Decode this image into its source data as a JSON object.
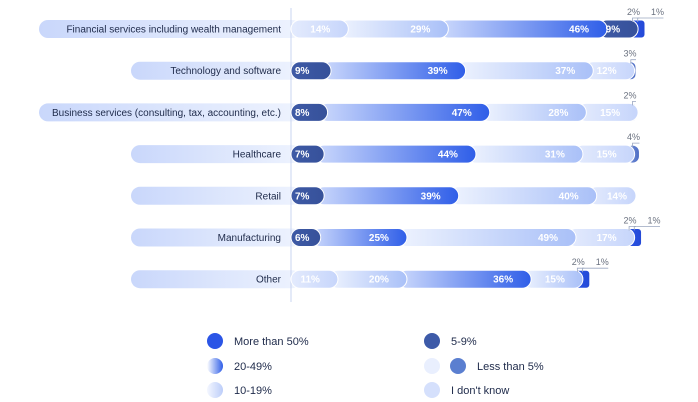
{
  "chart_data": {
    "type": "bar",
    "orientation": "horizontal",
    "stacked": true,
    "categories": [
      "Financial services including wealth management",
      "Technology and software",
      "Business services (consulting, tax, accounting, etc.)",
      "Healthcare",
      "Retail",
      "Manufacturing",
      "Other"
    ],
    "rows": [
      {
        "segments": [
          {
            "series": "I don't know",
            "value": 14,
            "label": "14%"
          },
          {
            "series": "10-19%",
            "value": 29,
            "label": "29%"
          },
          {
            "series": "20-49%",
            "value": 46,
            "label": "46%"
          },
          {
            "series": "5-9%",
            "value": 9,
            "label": "9%"
          },
          {
            "series": "More than 50%",
            "value": 2,
            "label": "2%"
          },
          {
            "series": "Less than 5%",
            "value": 1,
            "label": "1%"
          }
        ]
      },
      {
        "segments": [
          {
            "series": "5-9%",
            "value": 9,
            "label": "9%"
          },
          {
            "series": "20-49%",
            "value": 39,
            "label": "39%"
          },
          {
            "series": "10-19%",
            "value": 37,
            "label": "37%"
          },
          {
            "series": "I don't know",
            "value": 12,
            "label": "12%"
          },
          {
            "series": "Less than 5%",
            "value": 3,
            "label": "3%"
          }
        ]
      },
      {
        "segments": [
          {
            "series": "5-9%",
            "value": 8,
            "label": "8%"
          },
          {
            "series": "20-49%",
            "value": 47,
            "label": "47%"
          },
          {
            "series": "10-19%",
            "value": 28,
            "label": "28%"
          },
          {
            "series": "I don't know",
            "value": 15,
            "label": "15%"
          },
          {
            "series": "Less than 5%",
            "value": 2,
            "label": "2%"
          }
        ]
      },
      {
        "segments": [
          {
            "series": "5-9%",
            "value": 7,
            "label": "7%"
          },
          {
            "series": "20-49%",
            "value": 44,
            "label": "44%"
          },
          {
            "series": "10-19%",
            "value": 31,
            "label": "31%"
          },
          {
            "series": "I don't know",
            "value": 15,
            "label": "15%"
          },
          {
            "series": "Less than 5%",
            "value": 4,
            "label": "4%"
          }
        ]
      },
      {
        "segments": [
          {
            "series": "5-9%",
            "value": 7,
            "label": "7%"
          },
          {
            "series": "20-49%",
            "value": 39,
            "label": "39%"
          },
          {
            "series": "10-19%",
            "value": 40,
            "label": "40%"
          },
          {
            "series": "I don't know",
            "value": 14,
            "label": "14%"
          }
        ]
      },
      {
        "segments": [
          {
            "series": "5-9%",
            "value": 6,
            "label": "6%"
          },
          {
            "series": "20-49%",
            "value": 25,
            "label": "25%"
          },
          {
            "series": "10-19%",
            "value": 49,
            "label": "49%"
          },
          {
            "series": "I don't know",
            "value": 17,
            "label": "17%"
          },
          {
            "series": "More than 50%",
            "value": 2,
            "label": "2%"
          },
          {
            "series": "Less than 5%",
            "value": 1,
            "label": "1%"
          }
        ]
      },
      {
        "segments": [
          {
            "series": "I don't know",
            "value": 11,
            "label": "11%"
          },
          {
            "series": "10-19%",
            "value": 20,
            "label": "20%"
          },
          {
            "series": "20-49%",
            "value": 36,
            "label": "36%"
          },
          {
            "series": "10-19%",
            "value": 15,
            "label": "15%"
          },
          {
            "series": "More than 50%",
            "value": 2,
            "label": "2%"
          },
          {
            "series": "Less than 5%",
            "value": 1,
            "label": "1%"
          }
        ]
      }
    ],
    "legend": {
      "placement": "bottom",
      "items": [
        {
          "label": "More than 50%",
          "series": "More than 50%"
        },
        {
          "label": "5-9%",
          "series": "5-9%"
        },
        {
          "label": "20-49%",
          "series": "20-49%"
        },
        {
          "label": "Less than 5%",
          "series": "Less than 5%"
        },
        {
          "label": "10-19%",
          "series": "10-19%"
        },
        {
          "label": "I don't know",
          "series": "I don't know"
        }
      ]
    },
    "colors": {
      "More than 50%": "#2b55e6",
      "5-9%": "#3d5aa8",
      "20-49%": "#3d6ef0",
      "10-19%": "#c3d3fb",
      "I don't know": "#d5e0fc",
      "Less than 5%": "#5b7fd0"
    }
  }
}
